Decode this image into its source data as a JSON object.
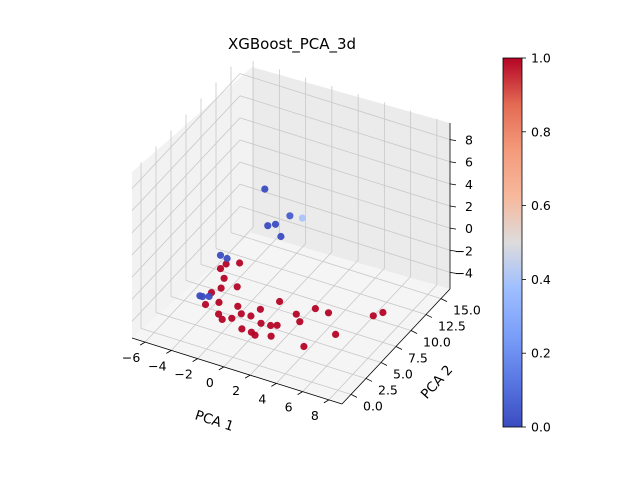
{
  "chart_data": {
    "type": "scatter",
    "projection": "3d",
    "title": "XGBoost_PCA_3d",
    "xlabel": "PCA 1",
    "ylabel": "PCA 2",
    "zlabel": "",
    "xlim": [
      -7,
      9
    ],
    "ylim": [
      -1.5,
      16.5
    ],
    "zlim": [
      -5.5,
      9.5
    ],
    "x_ticks": [
      -6,
      -4,
      -2,
      0,
      2,
      4,
      6,
      8
    ],
    "y_ticks": [
      0.0,
      2.5,
      5.0,
      7.5,
      10.0,
      12.5,
      15.0
    ],
    "y_tick_labels": [
      "0.0",
      "2.5",
      "5.0",
      "7.5",
      "10.0",
      "12.5",
      "15.0"
    ],
    "z_ticks": [
      -4,
      -2,
      0,
      2,
      4,
      6,
      8
    ],
    "grid": true,
    "colormap": "coolwarm",
    "colorbar": {
      "min": 0.0,
      "max": 1.0,
      "ticks": [
        0.0,
        0.2,
        0.4,
        0.6,
        0.8,
        1.0
      ],
      "tick_labels": [
        "0.0",
        "0.2",
        "0.4",
        "0.6",
        "0.8",
        "1.0"
      ]
    },
    "points": [
      {
        "x": -1.0,
        "y": 7.5,
        "z": 5.0,
        "c": 0.0
      },
      {
        "x": 0.0,
        "y": 9.5,
        "z": 1.8,
        "c": 0.05
      },
      {
        "x": -1.0,
        "y": 8.0,
        "z": 1.4,
        "c": 0.0
      },
      {
        "x": -0.5,
        "y": 8.2,
        "z": 1.6,
        "c": 0.0
      },
      {
        "x": 0.0,
        "y": 8.0,
        "z": 0.8,
        "c": 0.0
      },
      {
        "x": 0.5,
        "y": 10.5,
        "z": 1.2,
        "c": 0.4
      },
      {
        "x": -3.0,
        "y": 4.5,
        "z": 0.0,
        "c": 0.0
      },
      {
        "x": -2.5,
        "y": 4.5,
        "z": -0.1,
        "c": 0.0
      },
      {
        "x": -3.2,
        "y": 1.5,
        "z": -2.0,
        "c": 0.0
      },
      {
        "x": -3.0,
        "y": 1.5,
        "z": -2.0,
        "c": 0.0
      },
      {
        "x": -2.5,
        "y": 1.5,
        "z": -1.8,
        "c": 0.0
      },
      {
        "x": -2.8,
        "y": 5.0,
        "z": -1.0,
        "c": 1.0
      },
      {
        "x": -3.0,
        "y": 4.5,
        "z": -1.2,
        "c": 1.0
      },
      {
        "x": -2.5,
        "y": 4.0,
        "z": -1.6,
        "c": 1.0
      },
      {
        "x": -2.0,
        "y": 5.5,
        "z": -0.9,
        "c": 1.0
      },
      {
        "x": -2.5,
        "y": 3.5,
        "z": -2.2,
        "c": 1.0
      },
      {
        "x": -3.0,
        "y": 3.0,
        "z": -2.5,
        "c": 1.0
      },
      {
        "x": -1.5,
        "y": 4.0,
        "z": -2.0,
        "c": 1.0
      },
      {
        "x": -2.2,
        "y": 2.5,
        "z": -2.8,
        "c": 1.0
      },
      {
        "x": -3.0,
        "y": 2.0,
        "z": -3.0,
        "c": 1.0
      },
      {
        "x": -2.0,
        "y": 2.0,
        "z": -3.5,
        "c": 1.0
      },
      {
        "x": -1.0,
        "y": 3.0,
        "z": -3.0,
        "c": 1.0
      },
      {
        "x": -0.5,
        "y": 2.5,
        "z": -3.2,
        "c": 1.0
      },
      {
        "x": 0.0,
        "y": 3.0,
        "z": -3.5,
        "c": 1.0
      },
      {
        "x": 0.5,
        "y": 3.5,
        "z": -3.0,
        "c": 1.0
      },
      {
        "x": 1.0,
        "y": 2.5,
        "z": -3.5,
        "c": 1.0
      },
      {
        "x": 1.5,
        "y": 3.0,
        "z": -3.8,
        "c": 1.0
      },
      {
        "x": 2.0,
        "y": 3.0,
        "z": -3.6,
        "c": 1.0
      },
      {
        "x": -1.0,
        "y": 2.0,
        "z": -3.5,
        "c": 1.0
      },
      {
        "x": 0.0,
        "y": 1.5,
        "z": -3.8,
        "c": 1.0
      },
      {
        "x": 1.0,
        "y": 1.5,
        "z": -4.0,
        "c": 1.0
      },
      {
        "x": 2.0,
        "y": 2.0,
        "z": -4.0,
        "c": 1.0
      },
      {
        "x": 0.5,
        "y": 2.0,
        "z": -4.2,
        "c": 1.0
      },
      {
        "x": -1.5,
        "y": 1.5,
        "z": -3.5,
        "c": 1.0
      },
      {
        "x": 1.5,
        "y": 4.5,
        "z": -2.5,
        "c": 1.0
      },
      {
        "x": 3.0,
        "y": 4.0,
        "z": -2.8,
        "c": 1.0
      },
      {
        "x": 3.5,
        "y": 3.5,
        "z": -3.0,
        "c": 1.0
      },
      {
        "x": 4.0,
        "y": 5.0,
        "z": -2.5,
        "c": 1.0
      },
      {
        "x": 5.0,
        "y": 5.0,
        "z": -2.5,
        "c": 1.0
      },
      {
        "x": 4.5,
        "y": 2.0,
        "z": -4.0,
        "c": 1.0
      },
      {
        "x": 6.0,
        "y": 4.0,
        "z": -3.5,
        "c": 1.0
      },
      {
        "x": 7.5,
        "y": 7.0,
        "z": -3.0,
        "c": 1.0
      },
      {
        "x": 8.0,
        "y": 7.5,
        "z": -2.8,
        "c": 1.0
      }
    ]
  }
}
